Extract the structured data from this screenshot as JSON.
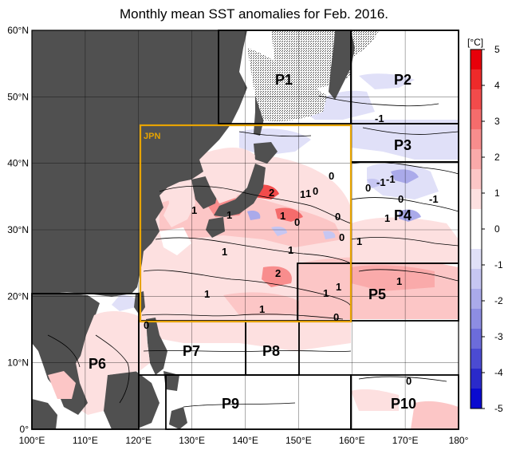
{
  "title": "Monthly mean SST anomalies for Feb. 2016.",
  "map": {
    "lat_ticks": [
      "0°",
      "10°N",
      "20°N",
      "30°N",
      "40°N",
      "50°N",
      "60°N"
    ],
    "lon_ticks": [
      "100°E",
      "110°E",
      "120°E",
      "130°E",
      "140°E",
      "150°E",
      "160°E",
      "170°E",
      "180°"
    ],
    "colors": {
      "land": "#505050",
      "ocean_neutral": "#ffffff",
      "jpn_box": "#e6a300",
      "region_box": "#000000",
      "grid": "#000000"
    },
    "regions": [
      {
        "id": "JPN",
        "label": "JPN"
      },
      {
        "id": "P1",
        "label": "P1"
      },
      {
        "id": "P2",
        "label": "P2"
      },
      {
        "id": "P3",
        "label": "P3"
      },
      {
        "id": "P4",
        "label": "P4"
      },
      {
        "id": "P5",
        "label": "P5"
      },
      {
        "id": "P6",
        "label": "P6"
      },
      {
        "id": "P7",
        "label": "P7"
      },
      {
        "id": "P8",
        "label": "P8"
      },
      {
        "id": "P9",
        "label": "P9"
      },
      {
        "id": "P10",
        "label": "P10"
      }
    ],
    "contour_labels": [
      "2",
      "1",
      "1",
      "1",
      "1",
      "0",
      "1",
      "0",
      "0",
      "0",
      "1",
      "1",
      "0",
      "1",
      "1",
      "1",
      "2",
      "1",
      "1",
      "1",
      "1",
      "0",
      "-1",
      "-1",
      "0",
      "-1",
      "0",
      "0",
      "0",
      "-1"
    ]
  },
  "colorbar": {
    "unit": "[°C]",
    "labels": [
      "5",
      "4",
      "3",
      "2",
      "1",
      "0",
      "-1",
      "-2",
      "-3",
      "-4",
      "-5"
    ],
    "colors": [
      "#e8000a",
      "#ee2a2a",
      "#f24b4b",
      "#f56c6c",
      "#f88d8d",
      "#faaaaa",
      "#fcc6c6",
      "#fde0e0",
      "#ffffff",
      "#ffffff",
      "#e0e0f8",
      "#c6c6f2",
      "#aaaaea",
      "#8d8de2",
      "#6c6cda",
      "#4b4bd2",
      "#2a2aca",
      "#0a0ad0"
    ]
  }
}
